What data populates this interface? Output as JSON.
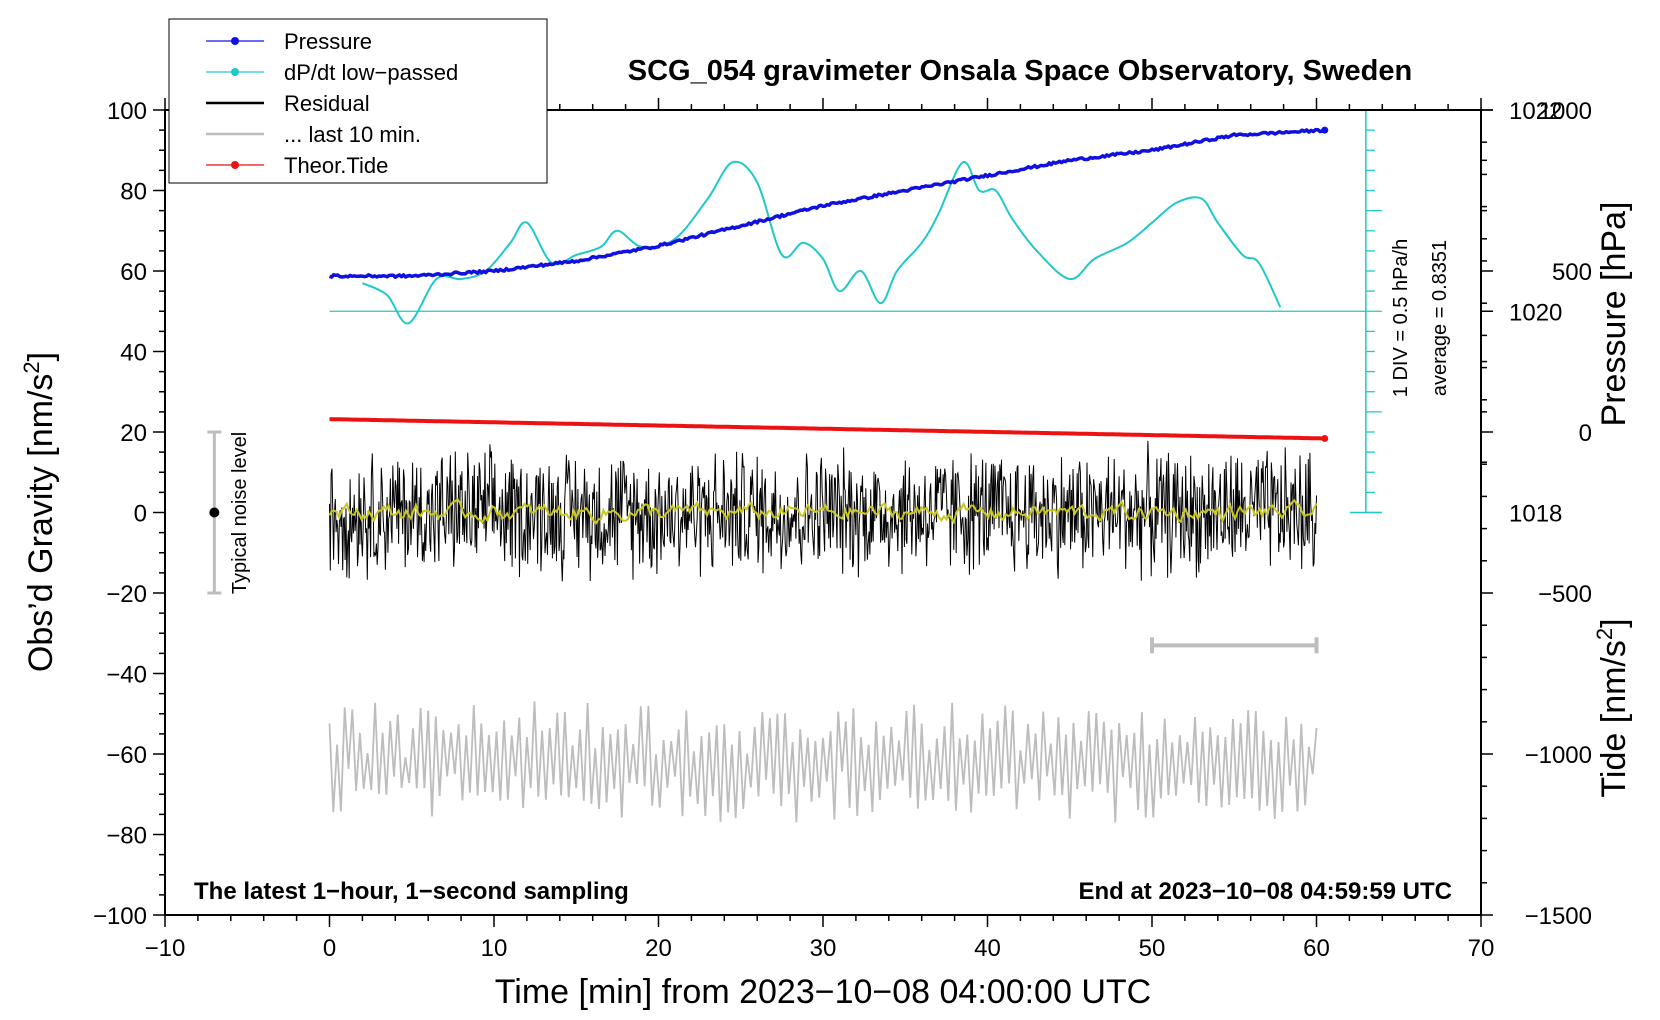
{
  "chart_data": {
    "type": "line",
    "title": "SCG_054 gravimeter Onsala Space Observatory, Sweden",
    "xlabel": "Time [min] from 2023−10−08 04:00:00 UTC",
    "ylabel_left_main": "Obs’d Gravity [nm/s",
    "ylabel_left_sup": "2",
    "ylabel_left_end": "]",
    "ylabel_right_pressure": "Pressure [hPa]",
    "ylabel_right_tide_main": "Tide [nm/s",
    "ylabel_right_tide_sup": "2",
    "ylabel_right_tide_end": "]",
    "xlim": [
      -10,
      70
    ],
    "ylim_gravity": [
      -100,
      100
    ],
    "ylim_tide": [
      -1500,
      1000
    ],
    "x_ticks": [
      "−10",
      "0",
      "10",
      "20",
      "30",
      "40",
      "50",
      "60",
      "70"
    ],
    "x_tick_values": [
      -10,
      0,
      10,
      20,
      30,
      40,
      50,
      60,
      70
    ],
    "y_ticks_left": [
      "100",
      "80",
      "60",
      "40",
      "20",
      "0",
      "−20",
      "−40",
      "−60",
      "−80",
      "−100"
    ],
    "y_tick_values_left": [
      100,
      80,
      60,
      40,
      20,
      0,
      -20,
      -40,
      -60,
      -80,
      -100
    ],
    "pressure_ticks": [
      "1022",
      "1020",
      "1018"
    ],
    "pressure_tick_values": [
      1022,
      1020,
      1018
    ],
    "pressure_axis": {
      "gravity_at_1020": 50,
      "gravity_per_hpa": 25
    },
    "tide_ticks": [
      "1000",
      "500",
      "0",
      "−500",
      "−1000",
      "−1500"
    ],
    "tide_tick_values": [
      1000,
      500,
      0,
      -500,
      -1000,
      -1500
    ],
    "legend": [
      {
        "label": "Pressure",
        "color": "#1010e0",
        "marker": true
      },
      {
        "label": "dP/dt low−passed",
        "color": "#20c8c8",
        "marker": true
      },
      {
        "label": "Residual",
        "color": "#000000",
        "marker": false
      },
      {
        "label": "... last 10 min.",
        "color": "#bdbdbd",
        "marker": false
      },
      {
        "label": "Theor.Tide",
        "color": "#ee1111",
        "marker": true
      }
    ],
    "legend_position": "top-left",
    "annotations": {
      "bottom_left": "The latest 1−hour, 1−second sampling",
      "bottom_right": "End at 2023−10−08 04:59:59 UTC",
      "dpdt_scale": "1 DIV = 0.5 hPa/h",
      "dpdt_average": "average = 0.8351",
      "noise_label": "Typical noise level"
    },
    "noise_bar": {
      "x": -7,
      "center": 0,
      "low": -20,
      "high": 20
    },
    "last10_bar": {
      "x_start": 50,
      "x_end": 60,
      "y": -33
    },
    "dpdt_scale_axis": {
      "x": 63,
      "bottom": 0,
      "top": 100,
      "zero_line": 50
    },
    "series": [
      {
        "name": "Pressure",
        "units": "hPa",
        "color": "#1010e0",
        "x": [
          0,
          5,
          10,
          15,
          20,
          25,
          30,
          35,
          40,
          45,
          50,
          55,
          60.5
        ],
        "values": [
          1020.35,
          1020.35,
          1020.4,
          1020.5,
          1020.65,
          1020.85,
          1021.05,
          1021.2,
          1021.35,
          1021.5,
          1021.6,
          1021.75,
          1021.8
        ]
      },
      {
        "name": "dP/dt low-passed",
        "units": "gravity-axis",
        "color": "#20c8c8",
        "x": [
          2,
          3.5,
          4.8,
          6.5,
          8,
          9.5,
          11,
          12,
          13.5,
          15,
          16.5,
          17.5,
          19,
          21,
          23,
          24.5,
          26,
          27.5,
          28.8,
          30,
          31,
          32.3,
          33.5,
          34.5,
          36,
          37,
          38.5,
          39.5,
          40.5,
          41.5,
          43,
          45,
          46.5,
          48.5,
          50,
          51.5,
          53,
          54,
          55.5,
          56.5,
          57.8
        ],
        "values": [
          57,
          54,
          47,
          58,
          58,
          60,
          67,
          72,
          62,
          64,
          66,
          70,
          66,
          68,
          78,
          87,
          82,
          64,
          67,
          63,
          55,
          60,
          52,
          60,
          67,
          74,
          87,
          80,
          80,
          73,
          65,
          58,
          63,
          67,
          72,
          77,
          78,
          72,
          64,
          62,
          51
        ]
      },
      {
        "name": "Residual",
        "units": "nm/s2",
        "color": "#000000",
        "x_range": [
          0,
          60
        ],
        "amplitude": 18
      },
      {
        "name": "Residual smoothed",
        "units": "nm/s2",
        "color": "#c8c820",
        "x_range": [
          0,
          60
        ],
        "amplitude": 2
      },
      {
        "name": "... last 10 min.",
        "units": "nm/s2",
        "color": "#bdbdbd",
        "x_range": [
          0,
          60
        ],
        "center": -62,
        "amplitude": 22
      },
      {
        "name": "Theor.Tide",
        "units": "nm/s2",
        "color": "#ee1111",
        "x": [
          0,
          60.5
        ],
        "values": [
          40,
          -20
        ]
      }
    ]
  }
}
